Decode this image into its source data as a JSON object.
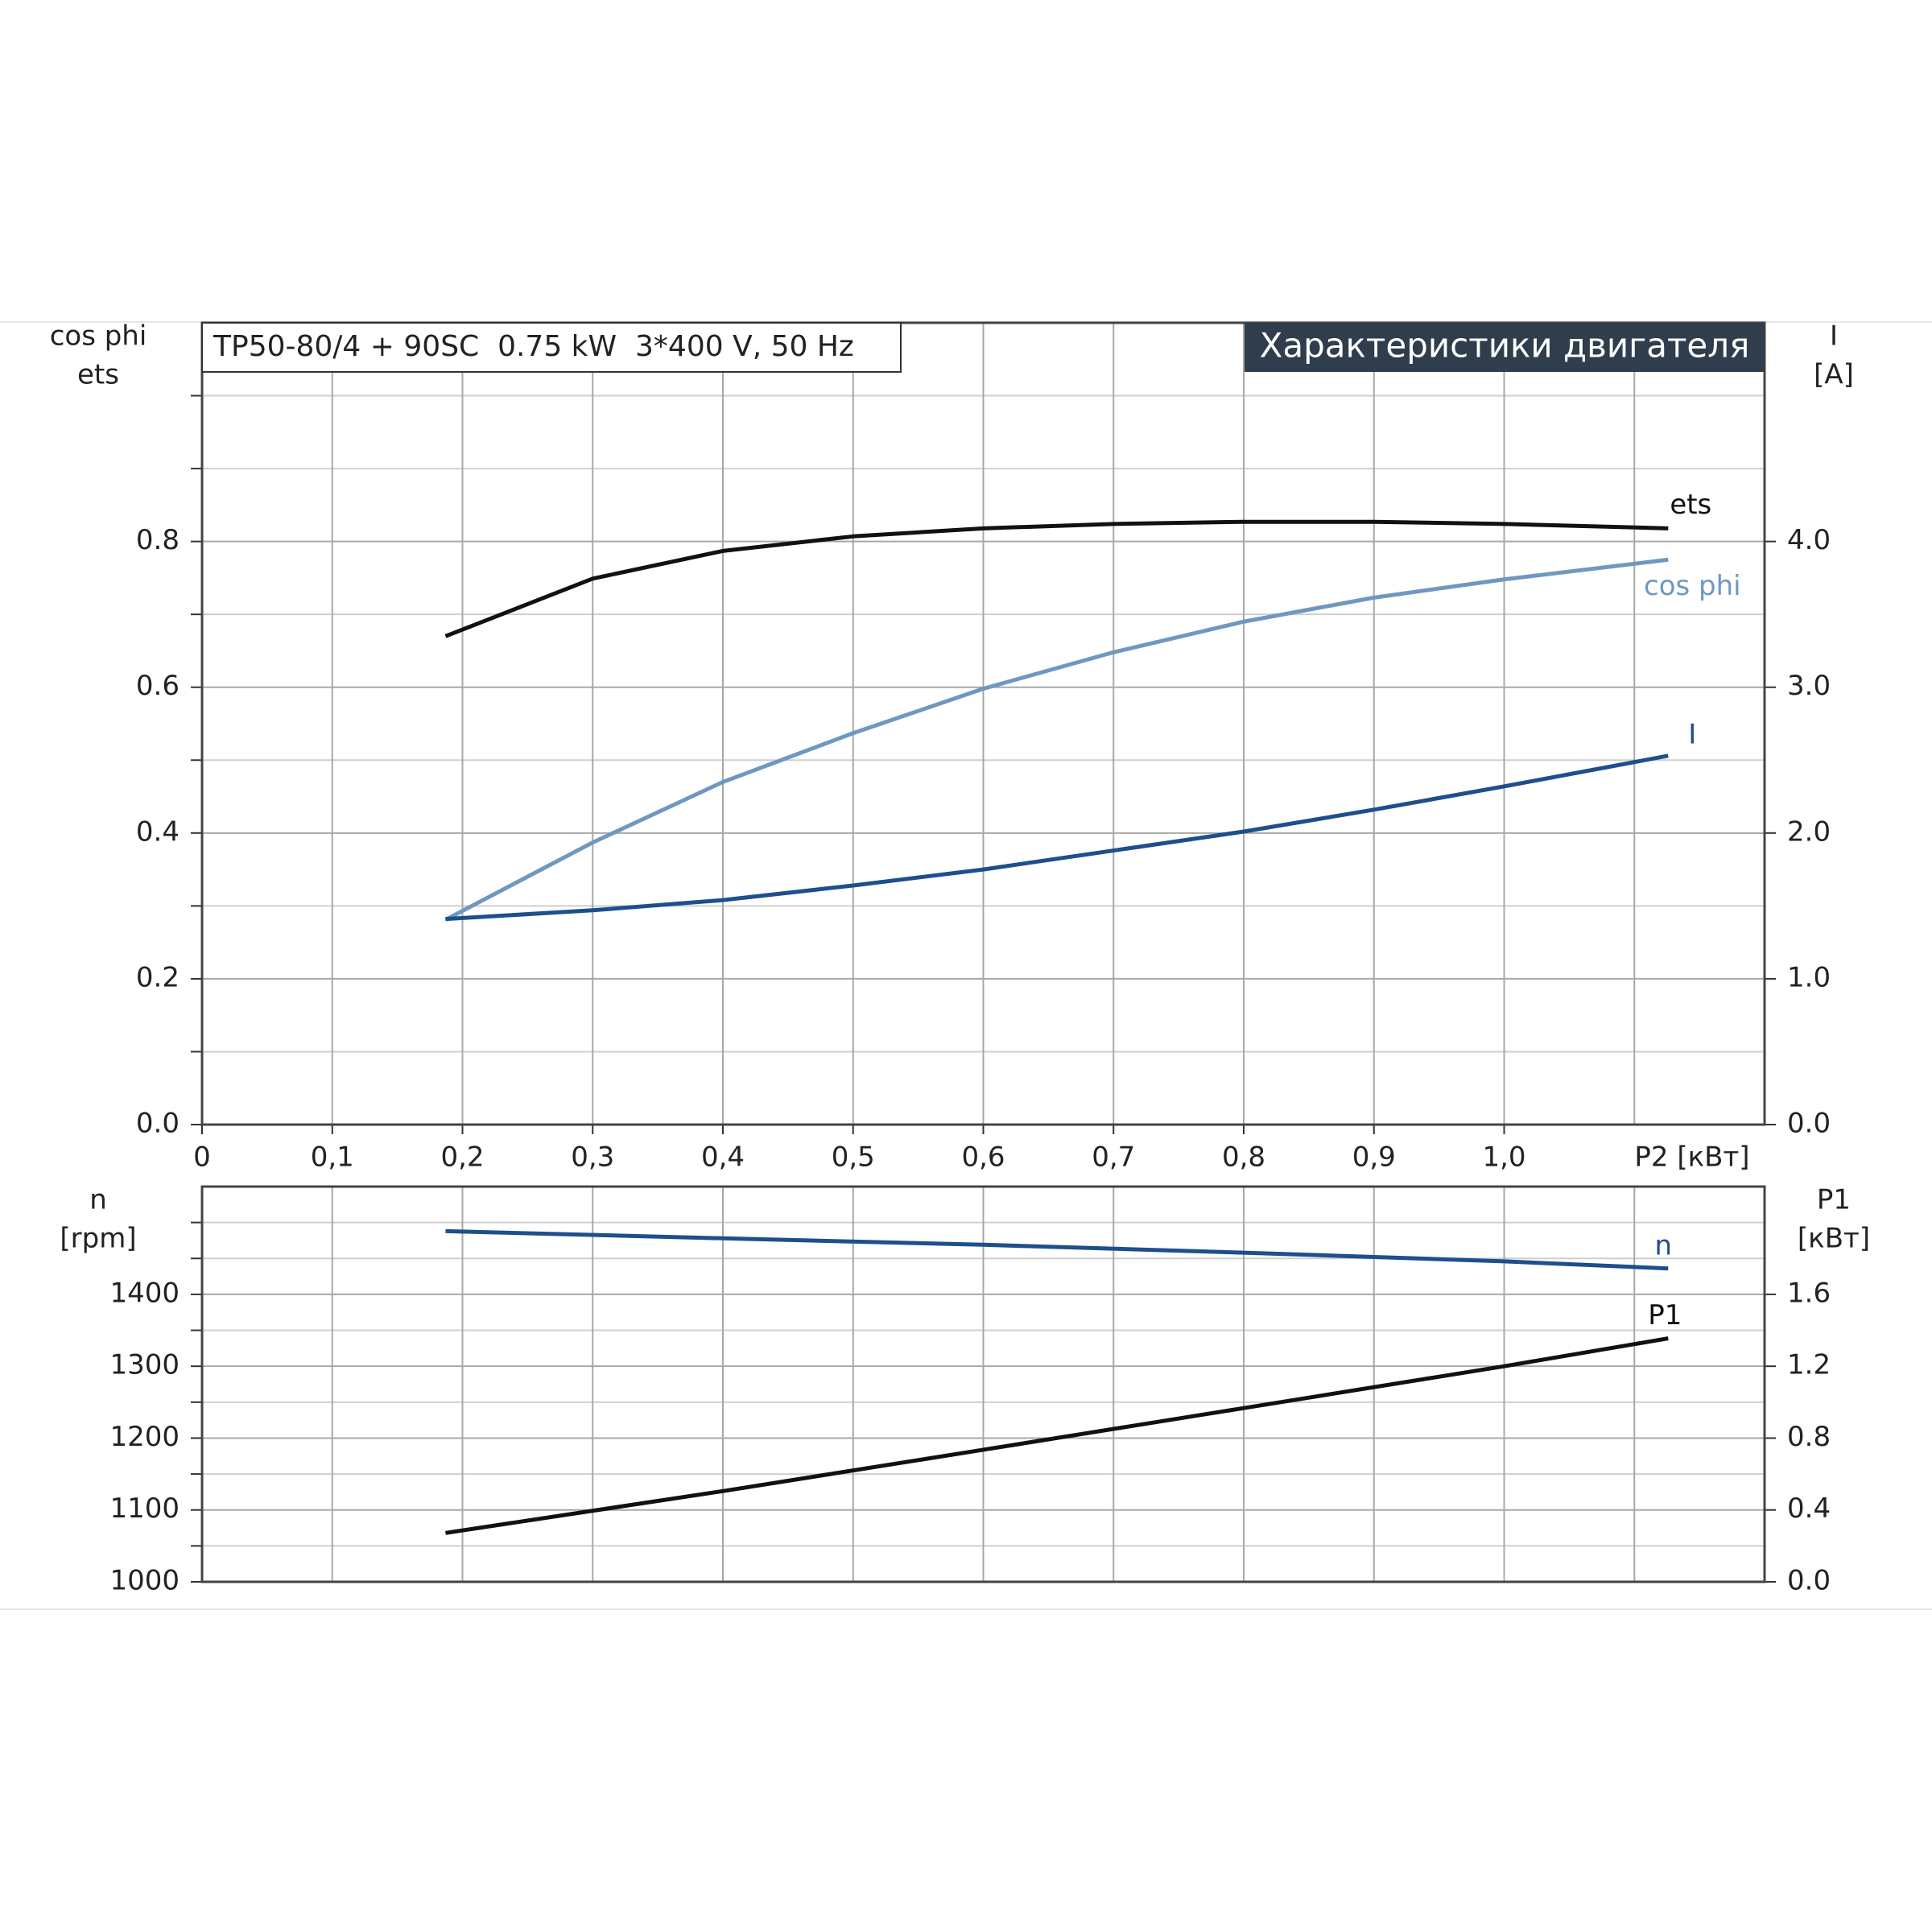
{
  "chart_data": [
    {
      "type": "line",
      "title": "TP50-80/4 + 90SC  0.75 kW  3*400 V, 50 Hz",
      "badge": "Характеристики двигателя",
      "ylabel": [
        "cos phi",
        "ets"
      ],
      "y2label": [
        "I",
        "[A]"
      ],
      "xlabel": "P2 [кВт]",
      "xlim": [
        0,
        1.2
      ],
      "xticks": [
        0,
        {
          "value": 0.1,
          "label": "0,1"
        },
        {
          "value": 0.2,
          "label": "0,2"
        },
        {
          "value": 0.3,
          "label": "0,3"
        },
        {
          "value": 0.4,
          "label": "0,4"
        },
        {
          "value": 0.5,
          "label": "0,5"
        },
        {
          "value": 0.6,
          "label": "0,6"
        },
        {
          "value": 0.7,
          "label": "0,7"
        },
        {
          "value": 0.8,
          "label": "0,8"
        },
        {
          "value": 0.9,
          "label": "0,9"
        },
        {
          "value": 1.0,
          "label": "1,0"
        }
      ],
      "xminor": [
        1.1
      ],
      "ylim": [
        0,
        1.1
      ],
      "yticks": [
        {
          "value": 0,
          "label": "0.0"
        },
        0.2,
        0.4,
        0.6,
        0.8
      ],
      "yminor": [
        0.1,
        0.3,
        0.5,
        0.7,
        0.9,
        1.0
      ],
      "y2lim": [
        0,
        5.5
      ],
      "y2ticks": [
        {
          "value": 0,
          "label": "0.0"
        },
        {
          "value": 1,
          "label": "1.0"
        },
        {
          "value": 2,
          "label": "2.0"
        },
        {
          "value": 3,
          "label": "3.0"
        },
        {
          "value": 4,
          "label": "4.0"
        }
      ],
      "grid": true,
      "series": [
        {
          "name": "ets",
          "color": "#111111",
          "x": [
            0.187,
            0.3,
            0.4,
            0.5,
            0.6,
            0.7,
            0.8,
            0.9,
            1.0,
            1.126
          ],
          "values": [
            0.67,
            0.749,
            0.787,
            0.807,
            0.818,
            0.824,
            0.827,
            0.827,
            0.824,
            0.818
          ]
        },
        {
          "name": "cos phi",
          "color": "#6f98c0",
          "x": [
            0.187,
            0.3,
            0.4,
            0.5,
            0.6,
            0.7,
            0.8,
            0.9,
            1.0,
            1.126
          ],
          "values": [
            0.281,
            0.387,
            0.47,
            0.537,
            0.598,
            0.648,
            0.69,
            0.723,
            0.748,
            0.775
          ]
        },
        {
          "name": "I",
          "color": "#1f4e8c",
          "axis": "y2",
          "x": [
            0.187,
            0.3,
            0.4,
            0.5,
            0.6,
            0.7,
            0.8,
            0.9,
            1.0,
            1.126
          ],
          "values": [
            1.41,
            1.47,
            1.54,
            1.64,
            1.75,
            1.88,
            2.01,
            2.16,
            2.32,
            2.53
          ]
        }
      ]
    },
    {
      "type": "line",
      "ylabel": [
        "n",
        "[rpm]"
      ],
      "y2label": [
        "P1",
        "[кВт]"
      ],
      "xlim": [
        0,
        1.2
      ],
      "xminor": [
        0.1,
        0.2,
        0.3,
        0.4,
        0.5,
        0.6,
        0.7,
        0.8,
        0.9,
        1.0,
        1.1
      ],
      "ylim": [
        1000,
        1550
      ],
      "yticks": [
        1000,
        1100,
        1200,
        1300,
        1400
      ],
      "yminor": [
        1050,
        1150,
        1250,
        1350,
        1450,
        1500
      ],
      "y2lim": [
        0,
        2.2
      ],
      "y2ticks": [
        {
          "value": 0,
          "label": "0.0"
        },
        0.4,
        0.8,
        1.2,
        1.6
      ],
      "grid": true,
      "series": [
        {
          "name": "n",
          "color": "#1f4e8c",
          "x": [
            0.187,
            0.4,
            0.6,
            0.8,
            1.0,
            1.126
          ],
          "values": [
            1488,
            1478,
            1469,
            1458,
            1446,
            1436
          ]
        },
        {
          "name": "P1",
          "color": "#111111",
          "axis": "y2",
          "x": [
            0.187,
            0.4,
            0.6,
            0.8,
            1.0,
            1.126
          ],
          "values": [
            0.272,
            0.505,
            0.735,
            0.967,
            1.2,
            1.355
          ]
        }
      ]
    }
  ]
}
